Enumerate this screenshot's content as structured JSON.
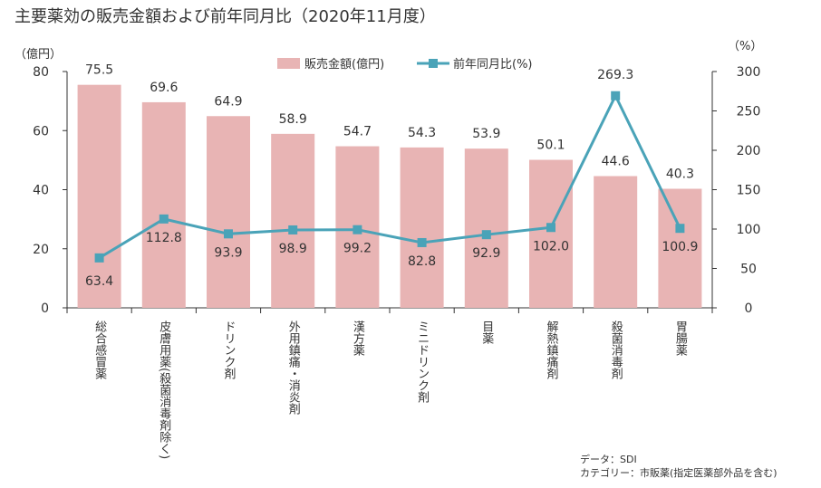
{
  "title": "主要薬効の販売金額および前年同月比（2020年11月度）",
  "colors": {
    "bar": "#e8b4b4",
    "line": "#4aa3b8",
    "axis": "#333333"
  },
  "chart_data": {
    "type": "bar",
    "title": "主要薬効の販売金額および前年同月比（2020年11月度）",
    "categories": [
      "総合感冒薬",
      "皮膚用薬(殺菌消毒剤除く)",
      "ドリンク剤",
      "外用鎮痛・消炎剤",
      "漢方薬",
      "ミニドリンク剤",
      "目薬",
      "解熱鎮痛剤",
      "殺菌消毒剤",
      "胃腸薬"
    ],
    "series": [
      {
        "name": "販売金額(億円)",
        "type": "bar",
        "axis": "left",
        "values": [
          75.5,
          69.6,
          64.9,
          58.9,
          54.7,
          54.3,
          53.9,
          50.1,
          44.6,
          40.3
        ]
      },
      {
        "name": "前年同月比(%)",
        "type": "line",
        "axis": "right",
        "values": [
          63.4,
          112.8,
          93.9,
          98.9,
          99.2,
          82.8,
          92.9,
          102.0,
          269.3,
          100.9
        ]
      }
    ],
    "y_left": {
      "label": "（億円）",
      "ylim": [
        0,
        80
      ],
      "ticks": [
        0,
        20,
        40,
        60,
        80
      ]
    },
    "y_right": {
      "label": "（%）",
      "ylim": [
        0,
        300
      ],
      "ticks": [
        0,
        50,
        100,
        150,
        200,
        250,
        300
      ]
    },
    "grid": false,
    "legend": "top-center",
    "bar_labels": [
      "75.5",
      "69.6",
      "64.9",
      "58.9",
      "54.7",
      "54.3",
      "53.9",
      "50.1",
      "44.6",
      "40.3"
    ],
    "line_labels": [
      "63.4",
      "112.8",
      "93.9",
      "98.9",
      "99.2",
      "82.8",
      "92.9",
      "102.0",
      "269.3",
      "100.9"
    ]
  },
  "notes": {
    "source": "データ：SDI",
    "category": "カテゴリー：市販薬(指定医薬部外品を含む)"
  }
}
